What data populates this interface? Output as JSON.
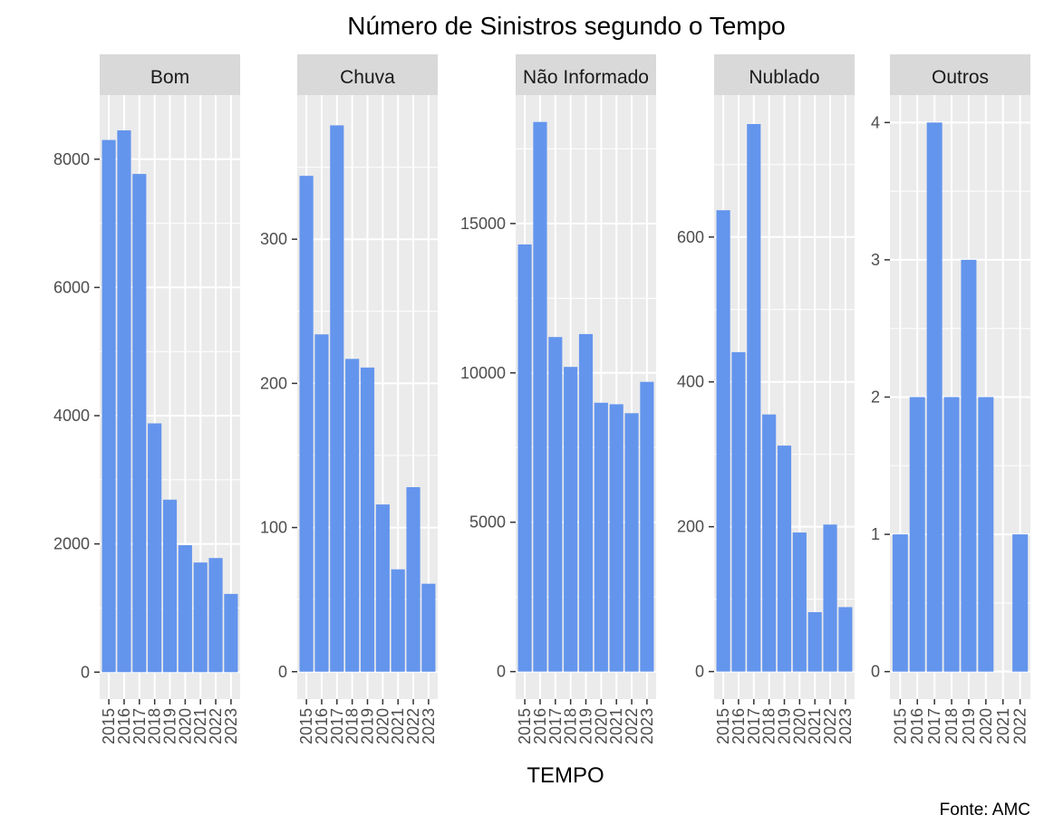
{
  "chart_data": {
    "type": "bar",
    "title": "Número de Sinistros segundo o Tempo",
    "xlabel": "TEMPO",
    "ylabel": "",
    "caption": "Fonte: AMC",
    "bar_color": "#6495ED",
    "panel_bg": "#EBEBEB",
    "strip_bg": "#D9D9D9",
    "grid": true,
    "legend": "none",
    "facets": [
      {
        "name": "Bom",
        "categories": [
          "2015",
          "2016",
          "2017",
          "2018",
          "2019",
          "2020",
          "2021",
          "2022",
          "2023"
        ],
        "values": [
          8300,
          8450,
          7770,
          3880,
          2690,
          1980,
          1710,
          1780,
          1220
        ],
        "ylim": [
          -420,
          9000
        ],
        "yticks": [
          0,
          2000,
          4000,
          6000,
          8000
        ],
        "ytick_labels": [
          "0",
          "2000",
          "4000",
          "6000",
          "8000"
        ]
      },
      {
        "name": "Chuva",
        "categories": [
          "2015",
          "2016",
          "2017",
          "2018",
          "2019",
          "2020",
          "2021",
          "2022",
          "2023"
        ],
        "values": [
          344,
          234,
          379,
          217,
          211,
          116,
          71,
          128,
          61
        ],
        "ylim": [
          -19,
          400
        ],
        "yticks": [
          0,
          100,
          200,
          300
        ],
        "ytick_labels": [
          "0",
          "100",
          "200",
          "300"
        ]
      },
      {
        "name": "Não Informado",
        "categories": [
          "2015",
          "2016",
          "2017",
          "2018",
          "2019",
          "2020",
          "2021",
          "2022",
          "2023"
        ],
        "values": [
          14300,
          18400,
          11200,
          10200,
          11300,
          9000,
          8950,
          8650,
          9700
        ],
        "ylim": [
          -920,
          19300
        ],
        "yticks": [
          0,
          5000,
          10000,
          15000
        ],
        "ytick_labels": [
          "0",
          "5000",
          "10000",
          "15000"
        ]
      },
      {
        "name": "Nublado",
        "categories": [
          "2015",
          "2016",
          "2017",
          "2018",
          "2019",
          "2020",
          "2021",
          "2022",
          "2023"
        ],
        "values": [
          637,
          441,
          756,
          355,
          312,
          192,
          82,
          203,
          89
        ],
        "ylim": [
          -38,
          796
        ],
        "yticks": [
          0,
          200,
          400,
          600
        ],
        "ytick_labels": [
          "0",
          "200",
          "400",
          "600"
        ]
      },
      {
        "name": "Outros",
        "categories": [
          "2015",
          "2016",
          "2017",
          "2018",
          "2019",
          "2020",
          "2021",
          "2022"
        ],
        "values": [
          1,
          2,
          4,
          2,
          3,
          2,
          0,
          1
        ],
        "ylim": [
          -0.2,
          4.2
        ],
        "yticks": [
          0,
          1,
          2,
          3,
          4
        ],
        "ytick_labels": [
          "0",
          "1",
          "2",
          "3",
          "4"
        ]
      }
    ]
  }
}
